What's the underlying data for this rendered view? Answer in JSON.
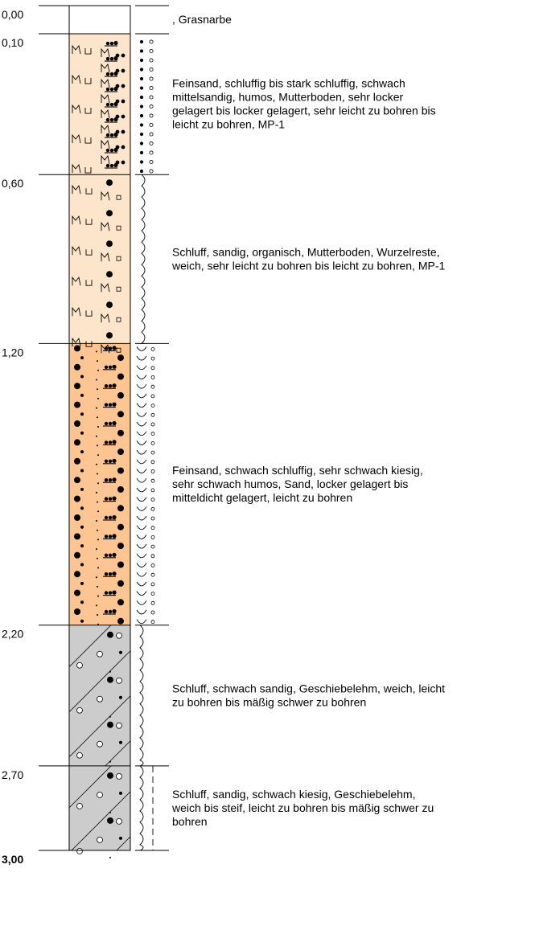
{
  "depth_labels": [
    "0,00",
    "0,10",
    "0,60",
    "1,20",
    "2,20",
    "2,70",
    "3,00"
  ],
  "layers": [
    {
      "name": "grasnarbe",
      "top": "0,00",
      "bottom": "0,10",
      "fill": "#ffffff",
      "description_lines": [
        ", Grasnarbe"
      ]
    },
    {
      "name": "feinsand-humos",
      "top": "0,10",
      "bottom": "0,60",
      "fill": "#fde5cb",
      "description_lines": [
        "Feinsand, schluffig bis stark schluffig, schwach",
        "mittelsandig, humos, Mutterboden, sehr locker",
        "gelagert bis locker gelagert, sehr leicht zu bohren bis",
        "leicht zu bohren, MP-1"
      ]
    },
    {
      "name": "schluff-organisch",
      "top": "0,60",
      "bottom": "1,20",
      "fill": "#fde5cb",
      "description_lines": [
        "Schluff, sandig, organisch, Mutterboden, Wurzelreste,",
        "weich, sehr leicht zu bohren bis leicht zu bohren, MP-1"
      ]
    },
    {
      "name": "feinsand-sand",
      "top": "1,20",
      "bottom": "2,20",
      "fill": "#fcc591",
      "description_lines": [
        "Feinsand, schwach schluffig, sehr schwach kiesig,",
        "sehr schwach humos, Sand, locker gelagert bis",
        "mitteldicht gelagert, leicht zu bohren"
      ]
    },
    {
      "name": "geschiebelehm-weich",
      "top": "2,20",
      "bottom": "2,70",
      "fill": "#cccccc",
      "description_lines": [
        "Schluff, schwach sandig, Geschiebelehm, weich, leicht",
        "zu bohren bis mäßig schwer zu bohren"
      ]
    },
    {
      "name": "geschiebelehm-steif",
      "top": "2,70",
      "bottom": "3,00",
      "fill": "#cccccc",
      "description_lines": [
        "Schluff, sandig, schwach kiesig, Geschiebelehm,",
        "weich bis steif, leicht zu bohren bis mäßig schwer zu",
        "bohren"
      ]
    }
  ]
}
